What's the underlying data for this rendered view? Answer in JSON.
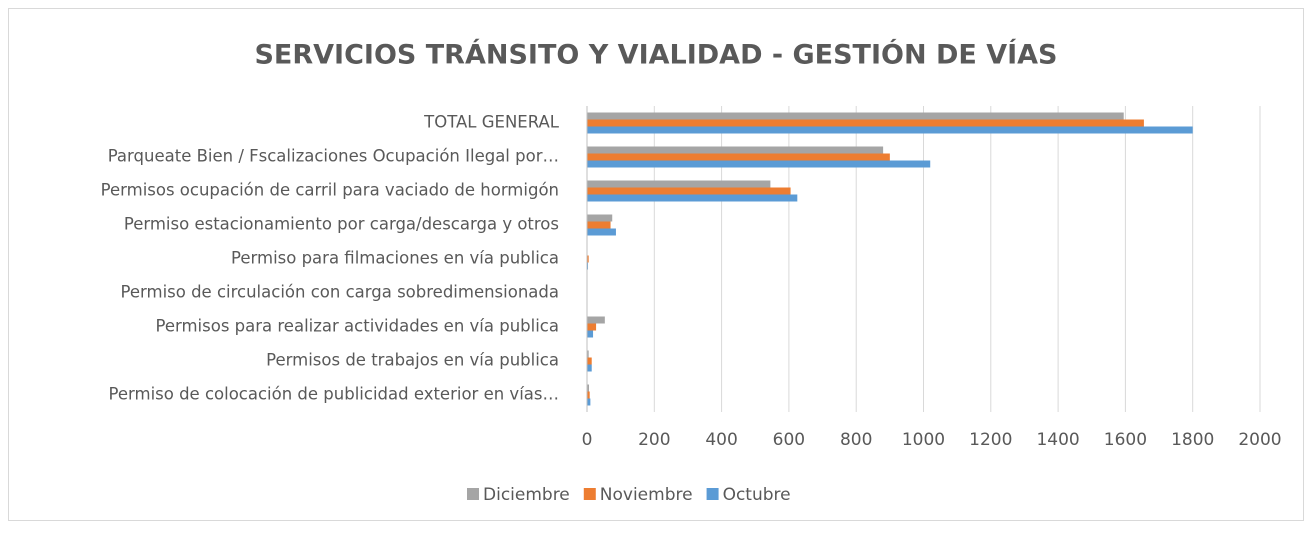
{
  "chart_data": {
    "type": "hbar",
    "title": "SERVICIOS TRÁNSITO Y VIALIDAD - GESTIÓN DE VÍAS",
    "categories": [
      "TOTAL GENERAL",
      "Parqueate Bien / Fscalizaciones Ocupación Ilegal por…",
      "Permisos ocupación de carril para vaciado de hormigón",
      "Permiso estacionamiento por carga/descarga y otros",
      "Permiso para filmaciones en vía publica",
      "Permiso de circulación con carga sobredimensionada",
      "Permisos para realizar actividades en vía publica",
      "Permisos de trabajos en vía publica",
      "Permiso de colocación de publicidad exterior en vías…"
    ],
    "series": [
      {
        "name": "Diciembre",
        "color": "#a5a5a5",
        "values": [
          1595,
          880,
          545,
          75,
          0,
          0,
          53,
          5,
          6
        ]
      },
      {
        "name": "Noviembre",
        "color": "#ed7d31",
        "values": [
          1655,
          900,
          605,
          70,
          5,
          0,
          27,
          14,
          8
        ]
      },
      {
        "name": "Octubre",
        "color": "#5b9bd5",
        "values": [
          1800,
          1020,
          625,
          86,
          3,
          0,
          18,
          14,
          10
        ]
      }
    ],
    "xlim": [
      0,
      2000
    ],
    "xticks": [
      0,
      200,
      400,
      600,
      800,
      1000,
      1200,
      1400,
      1600,
      1800,
      2000
    ],
    "grid": true,
    "legend": "bottom"
  }
}
